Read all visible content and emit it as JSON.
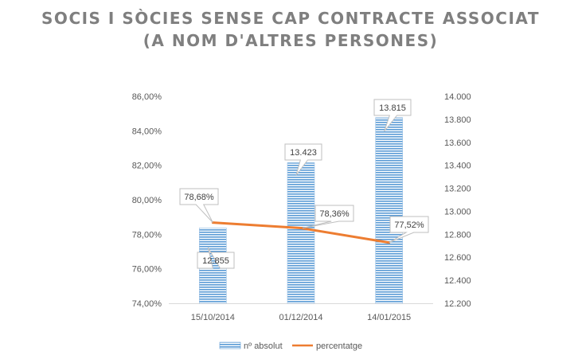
{
  "chart_data": {
    "type": "bar",
    "title_lines": [
      "SOCIS I SÒCIES SENSE CAP CONTRACTE ASSOCIAT",
      "(A NOM D'ALTRES PERSONES)"
    ],
    "categories": [
      "15/10/2014",
      "01/12/2014",
      "14/01/2015"
    ],
    "series": [
      {
        "name": "nº absolut",
        "type": "bar",
        "axis": "right",
        "values": [
          12855,
          13423,
          13815
        ],
        "labels": [
          "12.855",
          "13.423",
          "13.815"
        ],
        "color": "#5b9bd5"
      },
      {
        "name": "percentatge",
        "type": "line",
        "axis": "left",
        "values": [
          78.68,
          78.36,
          77.52
        ],
        "labels": [
          "78,68%",
          "78,36%",
          "77,52%"
        ],
        "color": "#ed7d31"
      }
    ],
    "left_axis": {
      "min": 74,
      "max": 86,
      "ticks": [
        "74,00%",
        "76,00%",
        "78,00%",
        "80,00%",
        "82,00%",
        "84,00%",
        "86,00%"
      ]
    },
    "right_axis": {
      "min": 12200,
      "max": 14000,
      "ticks": [
        "12.200",
        "12.400",
        "12.600",
        "12.800",
        "13.000",
        "13.200",
        "13.400",
        "13.600",
        "13.800",
        "14.000"
      ]
    },
    "legend_position": "bottom",
    "grid": false
  }
}
